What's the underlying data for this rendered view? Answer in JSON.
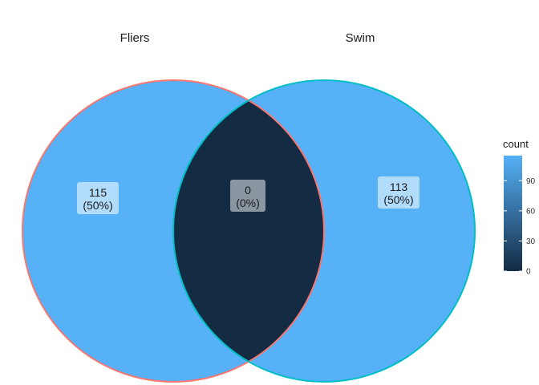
{
  "diagram": {
    "type": "venn",
    "sets": [
      {
        "name": "Fliers",
        "stroke": "#F8766D"
      },
      {
        "name": "Swim",
        "stroke": "#00BFC4"
      }
    ],
    "regions": [
      {
        "id": "fliers-only",
        "count": "115",
        "percent": "(50%)",
        "fill": "#56B1F7"
      },
      {
        "id": "intersection",
        "count": "0",
        "percent": "(0%)",
        "fill": "#132B43"
      },
      {
        "id": "swim-only",
        "count": "113",
        "percent": "(50%)",
        "fill": "#56B1F7"
      }
    ]
  },
  "legend": {
    "title": "count",
    "ticks": [
      "0",
      "30",
      "60",
      "90"
    ],
    "range": [
      0,
      115
    ],
    "gradient_low": "#132B43",
    "gradient_high": "#56B1F7"
  }
}
